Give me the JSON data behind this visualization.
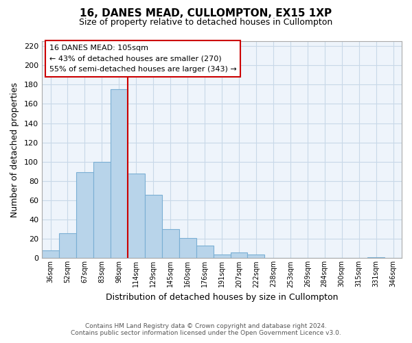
{
  "title": "16, DANES MEAD, CULLOMPTON, EX15 1XP",
  "subtitle": "Size of property relative to detached houses in Cullompton",
  "xlabel": "Distribution of detached houses by size in Cullompton",
  "ylabel": "Number of detached properties",
  "bar_labels": [
    "36sqm",
    "52sqm",
    "67sqm",
    "83sqm",
    "98sqm",
    "114sqm",
    "129sqm",
    "145sqm",
    "160sqm",
    "176sqm",
    "191sqm",
    "207sqm",
    "222sqm",
    "238sqm",
    "253sqm",
    "269sqm",
    "284sqm",
    "300sqm",
    "315sqm",
    "331sqm",
    "346sqm"
  ],
  "bar_values": [
    8,
    26,
    89,
    100,
    175,
    88,
    66,
    30,
    21,
    13,
    4,
    6,
    4,
    0,
    0,
    0,
    0,
    0,
    0,
    1,
    0
  ],
  "bar_color": "#b8d4ea",
  "bar_edge_color": "#7aafd4",
  "vline_x": 4.5,
  "vline_color": "#cc0000",
  "ylim": [
    0,
    225
  ],
  "yticks": [
    0,
    20,
    40,
    60,
    80,
    100,
    120,
    140,
    160,
    180,
    200,
    220
  ],
  "annotation_title": "16 DANES MEAD: 105sqm",
  "annotation_line1": "← 43% of detached houses are smaller (270)",
  "annotation_line2": "55% of semi-detached houses are larger (343) →",
  "footer_line1": "Contains HM Land Registry data © Crown copyright and database right 2024.",
  "footer_line2": "Contains public sector information licensed under the Open Government Licence v3.0.",
  "background_color": "#ffffff",
  "plot_bg_color": "#eef4fb",
  "grid_color": "#c8d8e8"
}
